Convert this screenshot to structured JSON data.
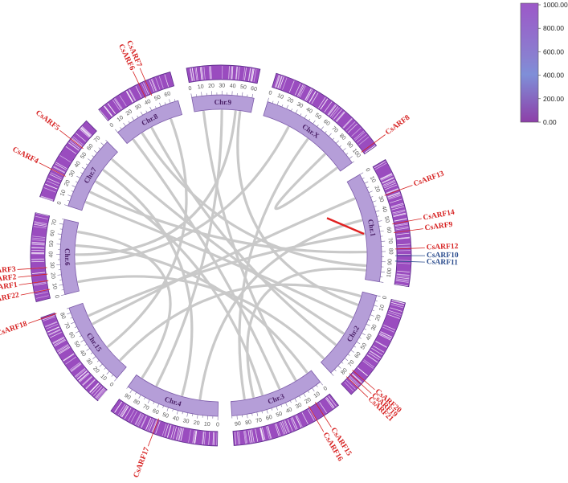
{
  "chromosomes": [
    {
      "id": "chr7",
      "label": "Chr.7",
      "length": 75,
      "ticks": [
        0,
        10,
        20,
        30,
        40,
        50,
        60,
        70
      ]
    },
    {
      "id": "chr8",
      "label": "Chr.8",
      "length": 68,
      "ticks": [
        0,
        10,
        20,
        30,
        40,
        50,
        60
      ]
    },
    {
      "id": "chr9",
      "label": "Chr.9",
      "length": 62,
      "ticks": [
        0,
        10,
        20,
        30,
        40,
        50,
        60
      ]
    },
    {
      "id": "chrx",
      "label": "Chr.X",
      "length": 105,
      "ticks": [
        0,
        10,
        20,
        30,
        40,
        50,
        60,
        70,
        80,
        90,
        100
      ]
    },
    {
      "id": "chr1",
      "label": "Chr.1",
      "length": 110,
      "ticks": [
        0,
        10,
        20,
        30,
        40,
        50,
        60,
        70,
        80,
        90,
        100
      ]
    },
    {
      "id": "chr2",
      "label": "Chr.2",
      "length": 90,
      "ticks": [
        0,
        10,
        20,
        30,
        40,
        50,
        60,
        70,
        80
      ]
    },
    {
      "id": "chr3",
      "label": "Chr.3",
      "length": 95,
      "ticks": [
        0,
        10,
        20,
        30,
        40,
        50,
        60,
        70,
        80,
        90
      ]
    },
    {
      "id": "chr4",
      "label": "Chr.4",
      "length": 95,
      "ticks": [
        0,
        10,
        20,
        30,
        40,
        50,
        60,
        70,
        80,
        90
      ]
    },
    {
      "id": "chr15",
      "label": "Chr.15",
      "length": 85,
      "ticks": [
        0,
        10,
        20,
        30,
        40,
        50,
        60,
        70,
        80
      ]
    },
    {
      "id": "chr6",
      "label": "Chr.6",
      "length": 75,
      "ticks": [
        0,
        10,
        20,
        30,
        40,
        50,
        60,
        70
      ]
    }
  ],
  "genes": [
    {
      "name": "CsARF4",
      "chr": "chr7",
      "pos": 25,
      "color": "#d62020"
    },
    {
      "name": "CsARF5",
      "chr": "chr7",
      "pos": 55,
      "color": "#d62020"
    },
    {
      "name": "CsARF6",
      "chr": "chr8",
      "pos": 40,
      "color": "#d62020"
    },
    {
      "name": "CsARF7",
      "chr": "chr8",
      "pos": 46,
      "color": "#d62020"
    },
    {
      "name": "CsARF8",
      "chr": "chrx",
      "pos": 102,
      "color": "#d62020"
    },
    {
      "name": "CsARF13",
      "chr": "chr1",
      "pos": 28,
      "color": "#d62020"
    },
    {
      "name": "CsARF14",
      "chr": "chr1",
      "pos": 55,
      "color": "#d62020"
    },
    {
      "name": "CsARF9",
      "chr": "chr1",
      "pos": 63,
      "color": "#d62020"
    },
    {
      "name": "CsARF12",
      "chr": "chr1",
      "pos": 78,
      "color": "#d62020"
    },
    {
      "name": "CsARF10",
      "chr": "chr1",
      "pos": 84,
      "color": "#2a4b8d"
    },
    {
      "name": "CsARF11",
      "chr": "chr1",
      "pos": 89,
      "color": "#2a4b8d"
    },
    {
      "name": "CsARF20",
      "chr": "chr2",
      "pos": 74,
      "color": "#d62020"
    },
    {
      "name": "CsARF19",
      "chr": "chr2",
      "pos": 78,
      "color": "#d62020"
    },
    {
      "name": "CsARF21",
      "chr": "chr2",
      "pos": 82,
      "color": "#d62020"
    },
    {
      "name": "CsARF15",
      "chr": "chr3",
      "pos": 15,
      "color": "#d62020"
    },
    {
      "name": "CsARF16",
      "chr": "chr3",
      "pos": 22,
      "color": "#d62020"
    },
    {
      "name": "CsARF17",
      "chr": "chr4",
      "pos": 55,
      "color": "#d62020"
    },
    {
      "name": "CsARF18",
      "chr": "chr15",
      "pos": 84,
      "color": "#d62020"
    },
    {
      "name": "CsARF3",
      "chr": "chr6",
      "pos": 28,
      "color": "#d62020"
    },
    {
      "name": "CsARF2",
      "chr": "chr6",
      "pos": 22,
      "color": "#d62020"
    },
    {
      "name": "CsARF1",
      "chr": "chr6",
      "pos": 16,
      "color": "#d62020"
    },
    {
      "name": "CsARF22",
      "chr": "chr6",
      "pos": 8,
      "color": "#d62020"
    }
  ],
  "links": [
    {
      "a": [
        "chr7",
        10
      ],
      "b": [
        "chr2",
        30
      ]
    },
    {
      "a": [
        "chr7",
        22
      ],
      "b": [
        "chr1",
        80
      ]
    },
    {
      "a": [
        "chr7",
        35
      ],
      "b": [
        "chr3",
        60
      ]
    },
    {
      "a": [
        "chr7",
        50
      ],
      "b": [
        "chr4",
        40
      ]
    },
    {
      "a": [
        "chr7",
        65
      ],
      "b": [
        "chr2",
        50
      ]
    },
    {
      "a": [
        "chr8",
        8
      ],
      "b": [
        "chr3",
        40
      ]
    },
    {
      "a": [
        "chr8",
        20
      ],
      "b": [
        "chr1",
        95
      ]
    },
    {
      "a": [
        "chr8",
        32
      ],
      "b": [
        "chr2",
        65
      ]
    },
    {
      "a": [
        "chr8",
        55
      ],
      "b": [
        "chr15",
        30
      ]
    },
    {
      "a": [
        "chr9",
        10
      ],
      "b": [
        "chr3",
        20
      ]
    },
    {
      "a": [
        "chr9",
        30
      ],
      "b": [
        "chr4",
        70
      ]
    },
    {
      "a": [
        "chr9",
        50
      ],
      "b": [
        "chr2",
        15
      ]
    },
    {
      "a": [
        "chrx",
        30
      ],
      "b": [
        "chr6",
        30
      ]
    },
    {
      "a": [
        "chrx",
        55
      ],
      "b": [
        "chr3",
        80
      ]
    },
    {
      "a": [
        "chrx",
        80
      ],
      "b": [
        "chrx",
        100
      ]
    },
    {
      "a": [
        "chr1",
        20
      ],
      "b": [
        "chr15",
        60
      ]
    },
    {
      "a": [
        "chr1",
        45
      ],
      "b": [
        "chr4",
        20
      ]
    },
    {
      "a": [
        "chr2",
        5
      ],
      "b": [
        "chr15",
        10
      ]
    },
    {
      "a": [
        "chr3",
        5
      ],
      "b": [
        "chr6",
        50
      ]
    },
    {
      "a": [
        "chr4",
        88
      ],
      "b": [
        "chr6",
        65
      ]
    },
    {
      "a": [
        "chr15",
        70
      ],
      "b": [
        "chr1",
        60
      ]
    },
    {
      "a": [
        "chr6",
        10
      ],
      "b": [
        "chr2",
        85
      ]
    },
    {
      "a": [
        "chr6",
        40
      ],
      "b": [
        "chr9",
        45
      ]
    },
    {
      "a": [
        "chr3",
        70
      ],
      "b": [
        "chr1",
        100
      ]
    }
  ],
  "highlight_link": {
    "a": [
      "chr1",
      60
    ],
    "b": [
      "chr1",
      30
    ],
    "color": "#e02020"
  },
  "legend": {
    "labels": [
      "1000.00",
      "800.00",
      "600.00",
      "400.00",
      "200.00",
      "0.00"
    ],
    "color_high": "#8e4fc4",
    "color_mid": "#7f8fd8",
    "color_low": "#8d3fa8"
  },
  "colors": {
    "ideogram": "#b59ed8",
    "ideogram_stroke": "#7b5aa8",
    "density": "#9a4cbf",
    "density_light": "#e0c8f0",
    "link": "#c9c9c9"
  }
}
